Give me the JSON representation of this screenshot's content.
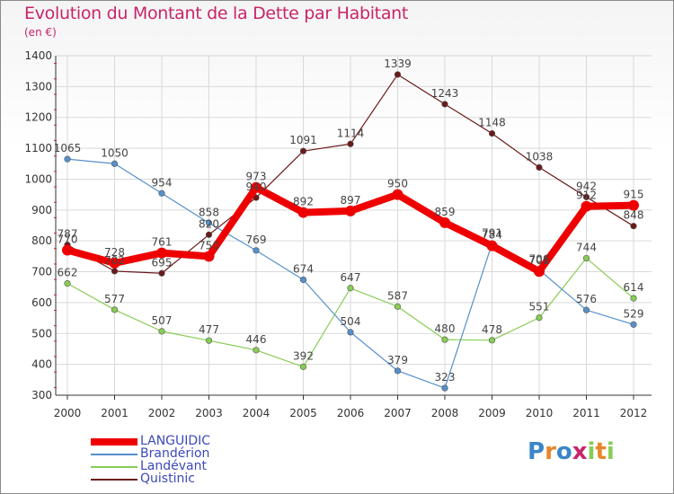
{
  "title": "Evolution du Montant de la Dette par Habitant",
  "unit": "(en €)",
  "logo": "Proxiti",
  "colors": {
    "title": "#c8246a",
    "axis": "#333333",
    "grid": "#d9d9d9",
    "legend_text": "#3c49b8"
  },
  "chart_data": {
    "type": "line",
    "title": "Evolution du Montant de la Dette par Habitant",
    "ylabel": "(en €)",
    "xlabel": "",
    "ylim": [
      300,
      1400
    ],
    "yticks": [
      300,
      400,
      500,
      600,
      700,
      800,
      900,
      1000,
      1100,
      1200,
      1300,
      1400
    ],
    "x": [
      "2000",
      "2001",
      "2002",
      "2003",
      "2004",
      "2005",
      "2006",
      "2007",
      "2008",
      "2009",
      "2010",
      "2011",
      "2012"
    ],
    "grid": true,
    "legend_position": "bottom-left",
    "series": [
      {
        "name": "LANGUIDIC",
        "color": "#ee0000",
        "values": [
          770,
          728,
          761,
          750,
          973,
          892,
          897,
          950,
          859,
          784,
          701,
          912,
          915
        ],
        "labels": [
          "770",
          "728",
          "761",
          "750",
          "973",
          "892",
          "897",
          "950",
          "859",
          "784",
          "701",
          "912",
          "915"
        ]
      },
      {
        "name": "Brandérion",
        "color": "#5590cc",
        "values": [
          1065,
          1050,
          954,
          858,
          769,
          674,
          504,
          379,
          323,
          791,
          706,
          576,
          529
        ],
        "labels": [
          "1065",
          "1050",
          "954",
          "858",
          "769",
          "674",
          "504",
          "379",
          "323",
          "791",
          "706",
          "576",
          "529"
        ]
      },
      {
        "name": "Landévant",
        "color": "#88cc55",
        "values": [
          662,
          577,
          507,
          477,
          446,
          392,
          647,
          587,
          480,
          478,
          551,
          744,
          614
        ],
        "labels": [
          "662",
          "577",
          "507",
          "477",
          "446",
          "392",
          "647",
          "587",
          "480",
          "478",
          "551",
          "744",
          "614"
        ]
      },
      {
        "name": "Quistinic",
        "color": "#6b1a1a",
        "values": [
          787,
          702,
          695,
          820,
          940,
          1091,
          1114,
          1339,
          1243,
          1148,
          1038,
          942,
          848
        ],
        "labels": [
          "787",
          "702",
          "695",
          "820",
          "940",
          "1091",
          "1114",
          "1339",
          "1243",
          "1148",
          "1038",
          "942",
          "848"
        ]
      }
    ]
  }
}
